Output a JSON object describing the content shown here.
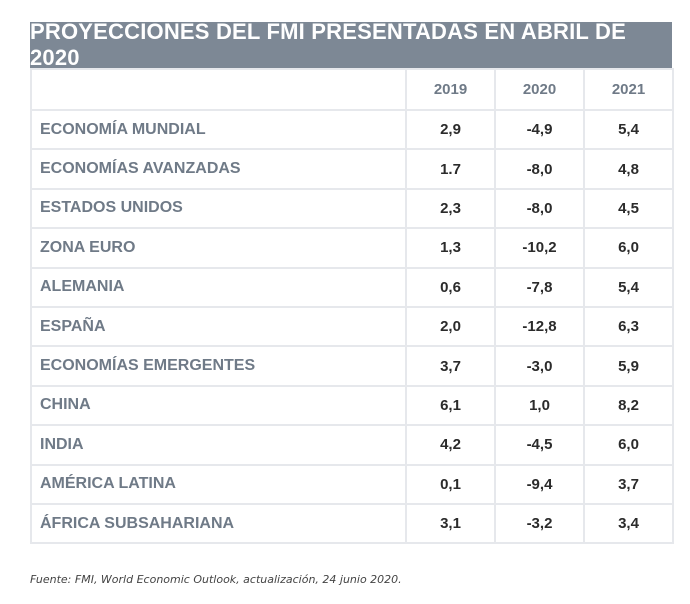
{
  "title": "PROYECCIONES DEL FMI PRESENTADAS EN ABRIL DE 2020",
  "columns": [
    "",
    "2019",
    "2020",
    "2021"
  ],
  "rows": [
    {
      "label": "ECONOMÍA MUNDIAL",
      "v2019": "2,9",
      "v2020": "-4,9",
      "v2021": "5,4"
    },
    {
      "label": "ECONOMÍAS AVANZADAS",
      "v2019": "1.7",
      "v2020": "-8,0",
      "v2021": "4,8"
    },
    {
      "label": "ESTADOS UNIDOS",
      "v2019": "2,3",
      "v2020": "-8,0",
      "v2021": "4,5"
    },
    {
      "label": "ZONA EURO",
      "v2019": "1,3",
      "v2020": "-10,2",
      "v2021": "6,0"
    },
    {
      "label": "ALEMANIA",
      "v2019": "0,6",
      "v2020": "-7,8",
      "v2021": "5,4"
    },
    {
      "label": "ESPAÑA",
      "v2019": "2,0",
      "v2020": "-12,8",
      "v2021": "6,3"
    },
    {
      "label": "ECONOMÍAS EMERGENTES",
      "v2019": "3,7",
      "v2020": "-3,0",
      "v2021": "5,9"
    },
    {
      "label": "CHINA",
      "v2019": "6,1",
      "v2020": "1,0",
      "v2021": "8,2"
    },
    {
      "label": "INDIA",
      "v2019": "4,2",
      "v2020": "-4,5",
      "v2021": "6,0"
    },
    {
      "label": "AMÉRICA LATINA",
      "v2019": "0,1",
      "v2020": "-9,4",
      "v2021": "3,7"
    },
    {
      "label": "ÁFRICA SUBSAHARIANA",
      "v2019": "3,1",
      "v2020": "-3,2",
      "v2021": "3,4"
    }
  ],
  "source": "Fuente: FMI, World Economic Outlook, actualización, 24 junio 2020.",
  "colors": {
    "title_bg": "#7d8895",
    "label_text": "#6f7a87",
    "value_text": "#2b2b2b",
    "grid": "#e6e8ec"
  }
}
